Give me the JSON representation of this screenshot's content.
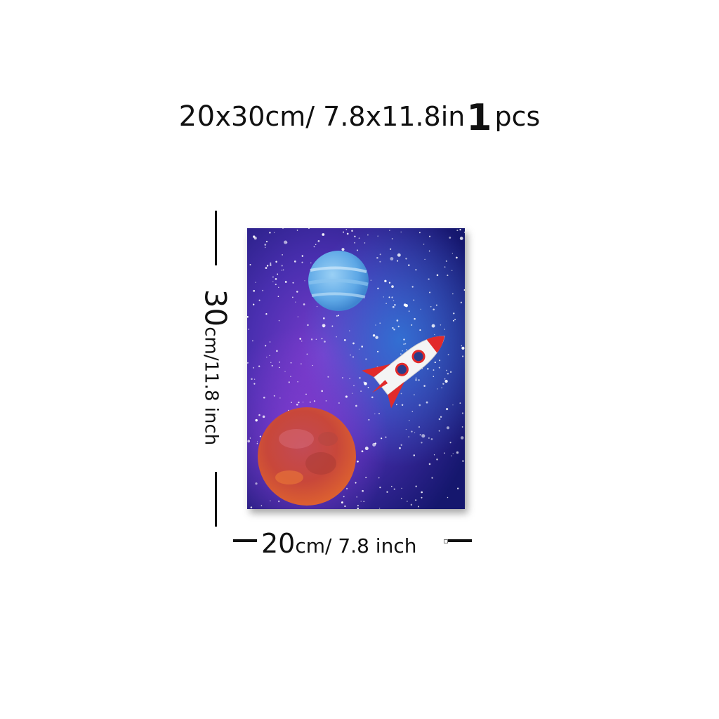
{
  "title": {
    "size_cm": "20",
    "x_cm": "x30cm",
    "slash_in": "/ 7.8x11.8in",
    "count": "1",
    "pcs": "pcs"
  },
  "height_dimension": {
    "value": "30",
    "unit": "cm/11.8 inch"
  },
  "width_dimension": {
    "value": "20",
    "unit": "cm/ 7.8 inch"
  },
  "artwork": {
    "subject_icons": [
      "blue-planet",
      "red-planet",
      "rocket"
    ],
    "colors": {
      "sky_deep": "#1c1f8f",
      "sky_violet": "#6a36c8",
      "sky_blue": "#2f6fd6",
      "blue_planet": "#6fb4ea",
      "red_planet": "#c8473a",
      "rocket_body": "#f4f4f4",
      "rocket_red": "#e22a2a"
    }
  }
}
